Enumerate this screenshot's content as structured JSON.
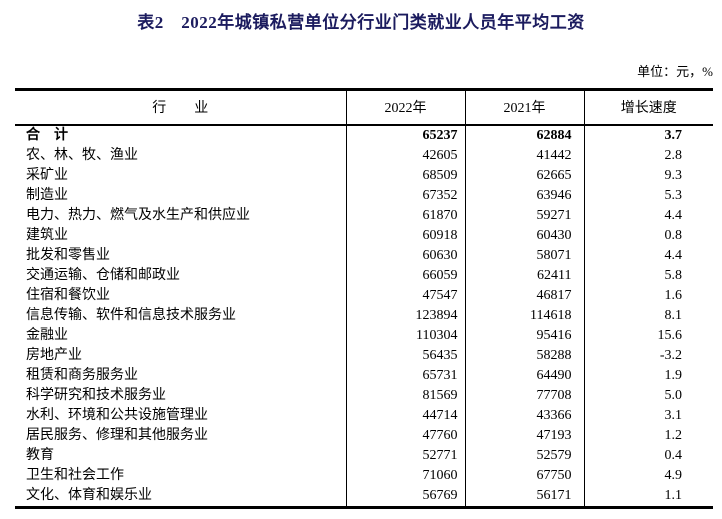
{
  "page": {
    "title": "表2　2022年城镇私营单位分行业门类就业人员年平均工资",
    "unit_note": "单位：元，%"
  },
  "colors": {
    "title_text": "#1b1b5e",
    "body_text": "#000000",
    "border": "#000000",
    "background": "#ffffff"
  },
  "table": {
    "headers": {
      "industry": "行　　业",
      "y2022": "2022年",
      "y2021": "2021年",
      "growth": "增长速度"
    },
    "rows": [
      {
        "industry": "合　计",
        "y2022": "65237",
        "y2021": "62884",
        "growth": "3.7",
        "is_total": true
      },
      {
        "industry": "农、林、牧、渔业",
        "y2022": "42605",
        "y2021": "41442",
        "growth": "2.8",
        "is_total": false
      },
      {
        "industry": "采矿业",
        "y2022": "68509",
        "y2021": "62665",
        "growth": "9.3",
        "is_total": false
      },
      {
        "industry": "制造业",
        "y2022": "67352",
        "y2021": "63946",
        "growth": "5.3",
        "is_total": false
      },
      {
        "industry": "电力、热力、燃气及水生产和供应业",
        "y2022": "61870",
        "y2021": "59271",
        "growth": "4.4",
        "is_total": false
      },
      {
        "industry": "建筑业",
        "y2022": "60918",
        "y2021": "60430",
        "growth": "0.8",
        "is_total": false
      },
      {
        "industry": "批发和零售业",
        "y2022": "60630",
        "y2021": "58071",
        "growth": "4.4",
        "is_total": false
      },
      {
        "industry": "交通运输、仓储和邮政业",
        "y2022": "66059",
        "y2021": "62411",
        "growth": "5.8",
        "is_total": false
      },
      {
        "industry": "住宿和餐饮业",
        "y2022": "47547",
        "y2021": "46817",
        "growth": "1.6",
        "is_total": false
      },
      {
        "industry": "信息传输、软件和信息技术服务业",
        "y2022": "123894",
        "y2021": "114618",
        "growth": "8.1",
        "is_total": false
      },
      {
        "industry": "金融业",
        "y2022": "110304",
        "y2021": "95416",
        "growth": "15.6",
        "is_total": false
      },
      {
        "industry": "房地产业",
        "y2022": "56435",
        "y2021": "58288",
        "growth": "-3.2",
        "is_total": false
      },
      {
        "industry": "租赁和商务服务业",
        "y2022": "65731",
        "y2021": "64490",
        "growth": "1.9",
        "is_total": false
      },
      {
        "industry": "科学研究和技术服务业",
        "y2022": "81569",
        "y2021": "77708",
        "growth": "5.0",
        "is_total": false
      },
      {
        "industry": "水利、环境和公共设施管理业",
        "y2022": "44714",
        "y2021": "43366",
        "growth": "3.1",
        "is_total": false
      },
      {
        "industry": "居民服务、修理和其他服务业",
        "y2022": "47760",
        "y2021": "47193",
        "growth": "1.2",
        "is_total": false
      },
      {
        "industry": "教育",
        "y2022": "52771",
        "y2021": "52579",
        "growth": "0.4",
        "is_total": false
      },
      {
        "industry": "卫生和社会工作",
        "y2022": "71060",
        "y2021": "67750",
        "growth": "4.9",
        "is_total": false
      },
      {
        "industry": "文化、体育和娱乐业",
        "y2022": "56769",
        "y2021": "56171",
        "growth": "1.1",
        "is_total": false
      }
    ]
  }
}
